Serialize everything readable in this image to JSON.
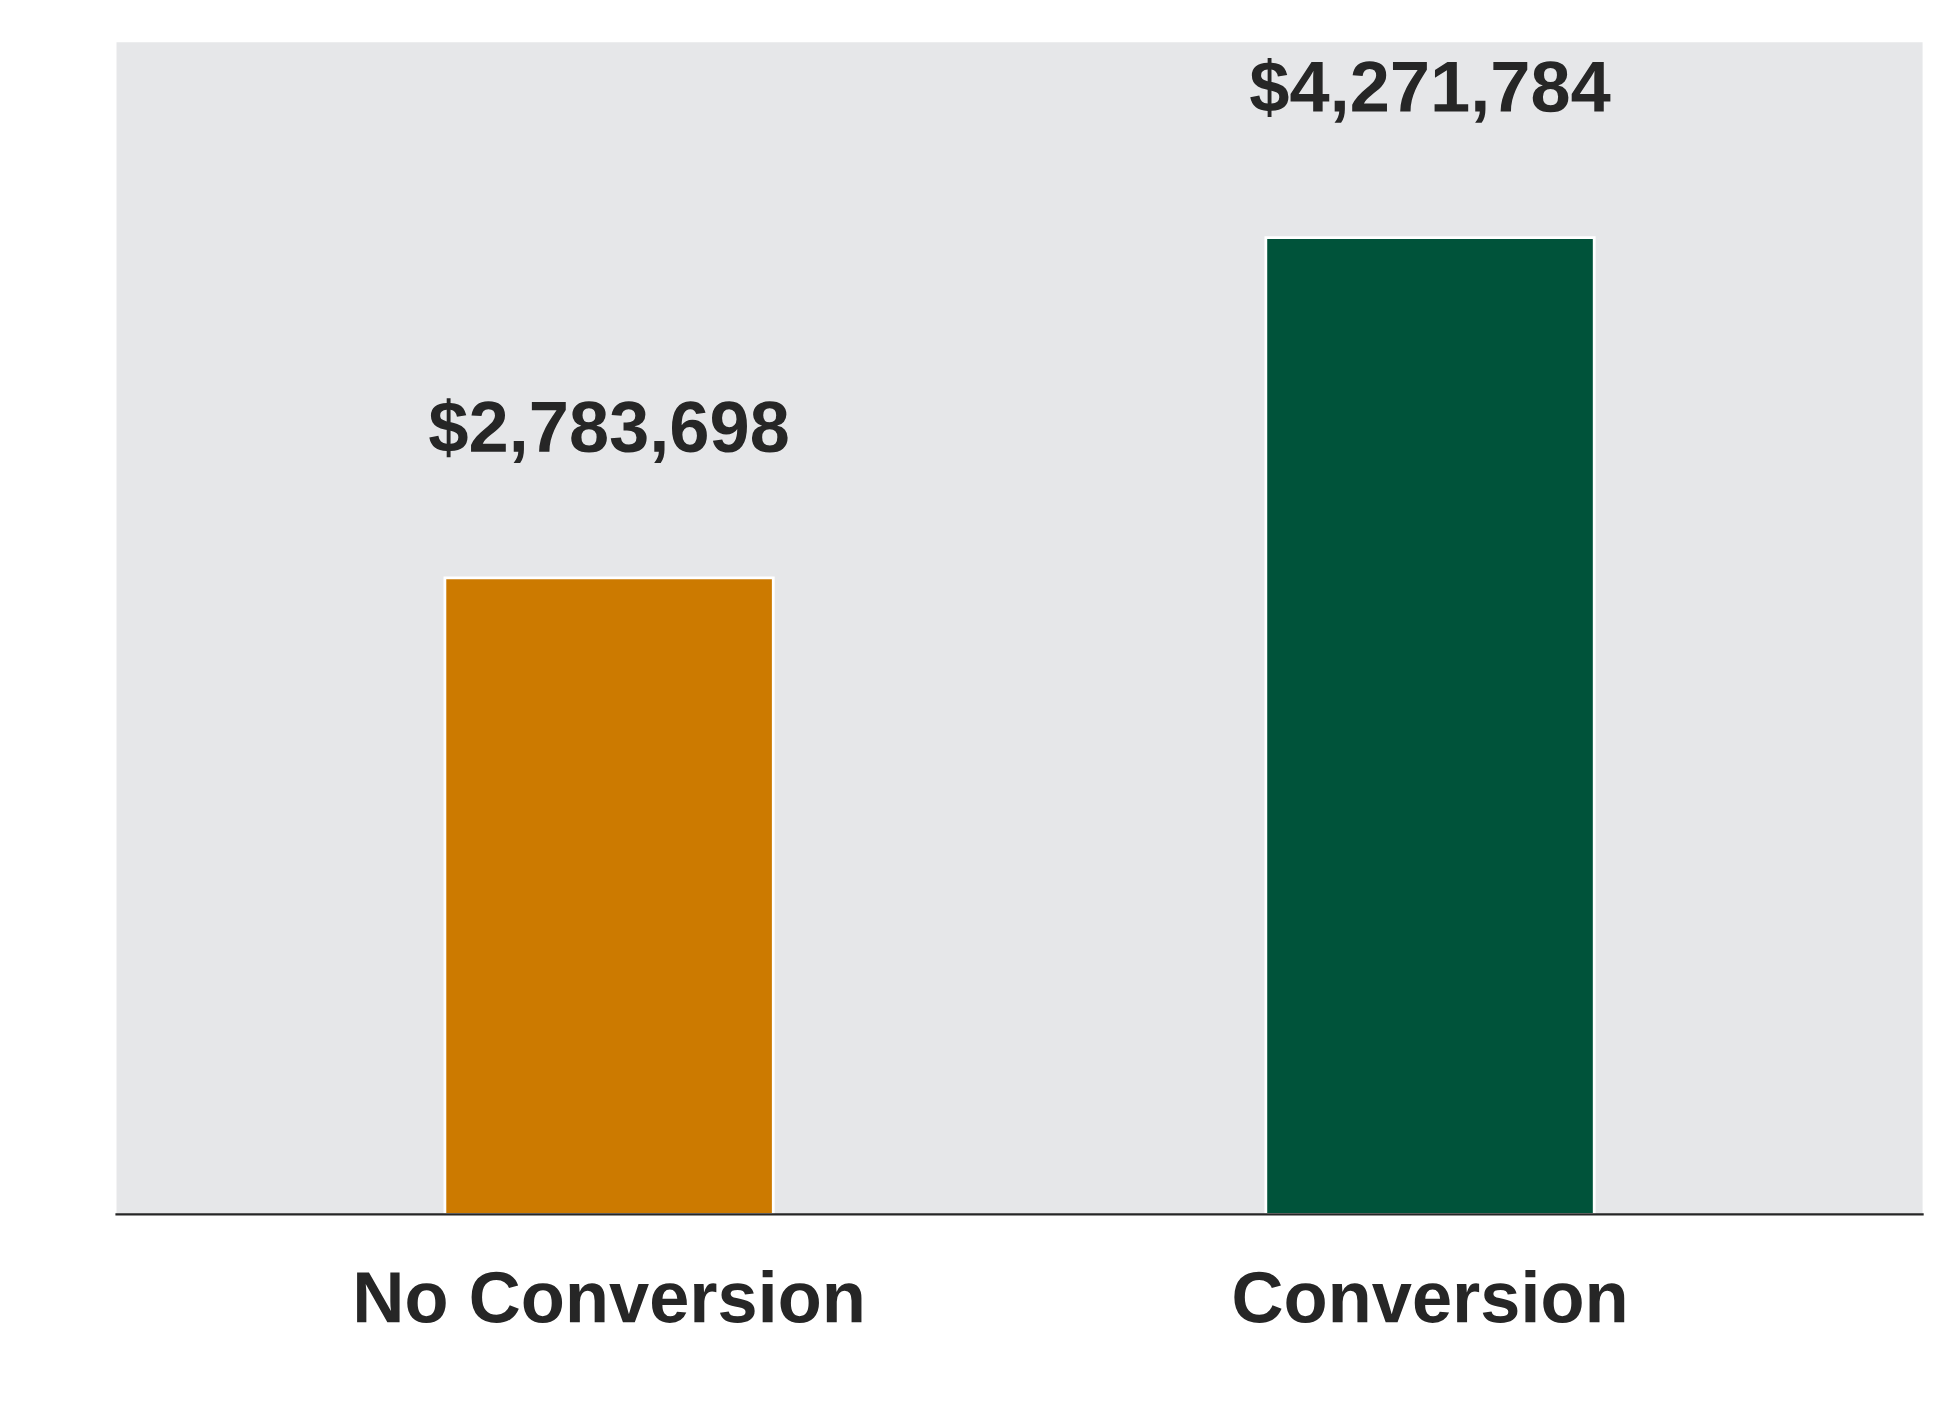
{
  "chart_data": {
    "type": "bar",
    "categories": [
      "No Conversion",
      "Conversion"
    ],
    "values": [
      2783698,
      4271784
    ],
    "colors": [
      "#cc7a00",
      "#00533a"
    ],
    "value_labels": [
      "$2,783,698",
      "$4,271,784"
    ],
    "grid": false,
    "legend": false
  }
}
